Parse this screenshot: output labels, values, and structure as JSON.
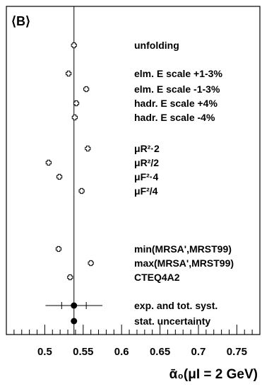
{
  "chart_data": {
    "type": "scatter",
    "panel_label": "⟨B⟩",
    "xlabel": "ᾱ₀(μI = 2 GeV)",
    "xlim": [
      0.45,
      0.78
    ],
    "x_ticks": [
      "0.5",
      "0.55",
      "0.6",
      "0.65",
      "0.7",
      "0.75"
    ],
    "reference_value": 0.538,
    "points": [
      {
        "label": "unfolding",
        "x": 0.538,
        "marker": "open-cross"
      },
      {
        "label": "elm. E scale +1-3%",
        "x": 0.531,
        "marker": "open-cross"
      },
      {
        "label": "elm. E scale  -1-3%",
        "x": 0.554,
        "marker": "open-cross"
      },
      {
        "label": "hadr. E scale +4%",
        "x": 0.541,
        "marker": "open-cross"
      },
      {
        "label": "hadr. E scale  -4%",
        "x": 0.539,
        "marker": "open-cross"
      },
      {
        "label": "μR²·2",
        "x": 0.556,
        "marker": "open-cross"
      },
      {
        "label": "μR²/2",
        "x": 0.505,
        "marker": "open-cross"
      },
      {
        "label": "μF²·4",
        "x": 0.519,
        "marker": "open-cross"
      },
      {
        "label": "μF²/4",
        "x": 0.548,
        "marker": "open-cross"
      },
      {
        "label": "min(MRSA',MRST99)",
        "x": 0.518,
        "marker": "open-cross"
      },
      {
        "label": "max(MRSA',MRST99)",
        "x": 0.56,
        "marker": "open-cross"
      },
      {
        "label": "CTEQ4A2",
        "x": 0.533,
        "marker": "open-cross"
      },
      {
        "label": "exp. and tot. syst.",
        "x": 0.538,
        "marker": "filled-circle",
        "err_total": 0.037,
        "err_exp": 0.016
      },
      {
        "label": "stat.  uncertainty",
        "x": 0.538,
        "marker": "filled-circle",
        "err_total": 0.002
      }
    ]
  }
}
